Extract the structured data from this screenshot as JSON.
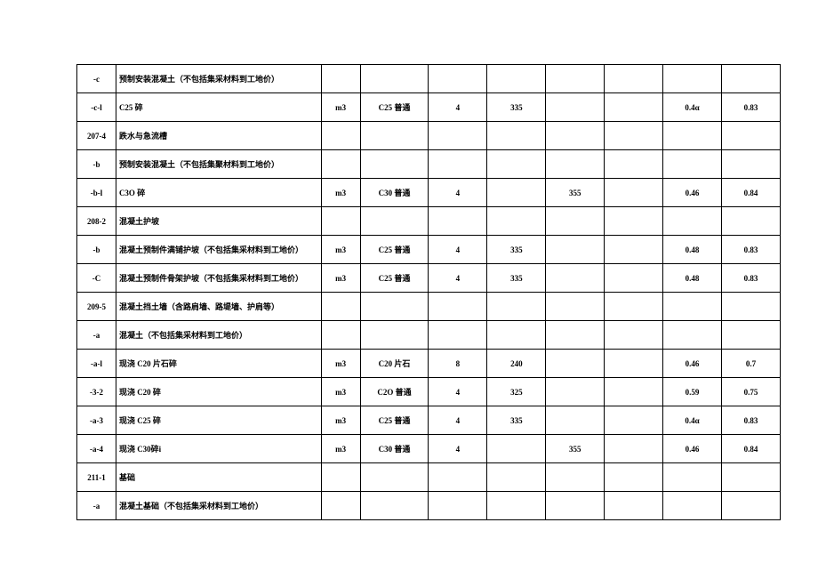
{
  "table": {
    "rows": [
      {
        "c0": "-c",
        "c1": "预制安装混凝土（不包括集采材料到工地价）",
        "c2": "",
        "c3": "",
        "c4": "",
        "c5": "",
        "c6": "",
        "c7": "",
        "c8": "",
        "c9": ""
      },
      {
        "c0": "-c-l",
        "c1": "C25 碎",
        "c2": "m3",
        "c3": "C25 普通",
        "c4": "4",
        "c5": "335",
        "c6": "",
        "c7": "",
        "c8": "0.4α",
        "c9": "0.83"
      },
      {
        "c0": "207-4",
        "c1": "跌水与急流槽",
        "c2": "",
        "c3": "",
        "c4": "",
        "c5": "",
        "c6": "",
        "c7": "",
        "c8": "",
        "c9": ""
      },
      {
        "c0": "-b",
        "c1": "预制安装混凝土（不包括集聚材料到工地价）",
        "c2": "",
        "c3": "",
        "c4": "",
        "c5": "",
        "c6": "",
        "c7": "",
        "c8": "",
        "c9": ""
      },
      {
        "c0": "-b-l",
        "c1": "C3O 碎",
        "c2": "m3",
        "c3": "C30 普通",
        "c4": "4",
        "c5": "",
        "c6": "355",
        "c7": "",
        "c8": "0.46",
        "c9": "0.84"
      },
      {
        "c0": "208-2",
        "c1": "混凝土护坡",
        "c2": "",
        "c3": "",
        "c4": "",
        "c5": "",
        "c6": "",
        "c7": "",
        "c8": "",
        "c9": ""
      },
      {
        "c0": "-b",
        "c1": "混凝土预制件满铺护坡（不包括集采材料到工地价）",
        "c2": "m3",
        "c3": "C25 普通",
        "c4": "4",
        "c5": "335",
        "c6": "",
        "c7": "",
        "c8": "0.48",
        "c9": "0.83"
      },
      {
        "c0": "-C",
        "c1": "混凝土预制件骨架护坡（不包括集采材料到工地价）",
        "c2": "m3",
        "c3": "C25 普通",
        "c4": "4",
        "c5": "335",
        "c6": "",
        "c7": "",
        "c8": "0.48",
        "c9": "0.83"
      },
      {
        "c0": "209-5",
        "c1": "混凝土挡土墙（含路肩墙、路堤墙、护肩等）",
        "c2": "",
        "c3": "",
        "c4": "",
        "c5": "",
        "c6": "",
        "c7": "",
        "c8": "",
        "c9": ""
      },
      {
        "c0": "-a",
        "c1": "混凝土（不包括集采材料到工地价）",
        "c2": "",
        "c3": "",
        "c4": "",
        "c5": "",
        "c6": "",
        "c7": "",
        "c8": "",
        "c9": ""
      },
      {
        "c0": "-a-l",
        "c1": "现浇 C20 片石碎",
        "c2": "m3",
        "c3": "C20 片石",
        "c4": "8",
        "c5": "240",
        "c6": "",
        "c7": "",
        "c8": "0.46",
        "c9": "0.7"
      },
      {
        "c0": "-3-2",
        "c1": "现浇 C20 碎",
        "c2": "m3",
        "c3": "C2O 普通",
        "c4": "4",
        "c5": "325",
        "c6": "",
        "c7": "",
        "c8": "0.59",
        "c9": "0.75"
      },
      {
        "c0": "-a-3",
        "c1": "现浇 C25 碎",
        "c2": "m3",
        "c3": "C25 普通",
        "c4": "4",
        "c5": "335",
        "c6": "",
        "c7": "",
        "c8": "0.4α",
        "c9": "0.83"
      },
      {
        "c0": "-a-4",
        "c1": "现浇 C30碎i",
        "c2": "m3",
        "c3": "C30 普通",
        "c4": "4",
        "c5": "",
        "c6": "355",
        "c7": "",
        "c8": "0.46",
        "c9": "0.84"
      },
      {
        "c0": "211-1",
        "c1": "基础",
        "c2": "",
        "c3": "",
        "c4": "",
        "c5": "",
        "c6": "",
        "c7": "",
        "c8": "",
        "c9": ""
      },
      {
        "c0": "-a",
        "c1": "混凝土基础（不包括集采材料到工地价）",
        "c2": "",
        "c3": "",
        "c4": "",
        "c5": "",
        "c6": "",
        "c7": "",
        "c8": "",
        "c9": ""
      }
    ]
  }
}
